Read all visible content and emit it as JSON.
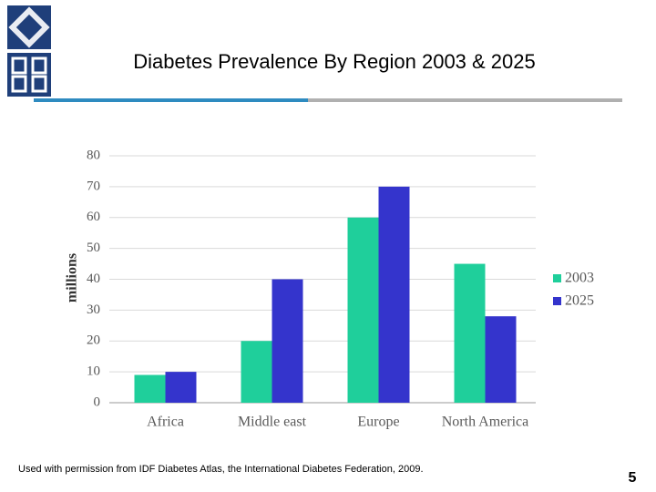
{
  "chart_data": {
    "type": "bar",
    "title": "Diabetes Prevalence By Region 2003 & 2025",
    "categories": [
      "Africa",
      "Middle east",
      "Europe",
      "North America"
    ],
    "series": [
      {
        "name": "2003",
        "color": "#1fcf9b",
        "values": [
          9,
          20,
          60,
          45
        ]
      },
      {
        "name": "2025",
        "color": "#3434cc",
        "values": [
          10,
          40,
          70,
          28
        ]
      }
    ],
    "y_label": "millions",
    "ylim": [
      0,
      80
    ],
    "yticks": [
      0,
      10,
      20,
      30,
      40,
      50,
      60,
      70,
      80
    ],
    "grid": true,
    "legend": "right"
  },
  "slide": {
    "source_note": "Used with permission from IDF Diabetes Atlas, the International Diabetes Federation, 2009.",
    "page_number": "5"
  }
}
